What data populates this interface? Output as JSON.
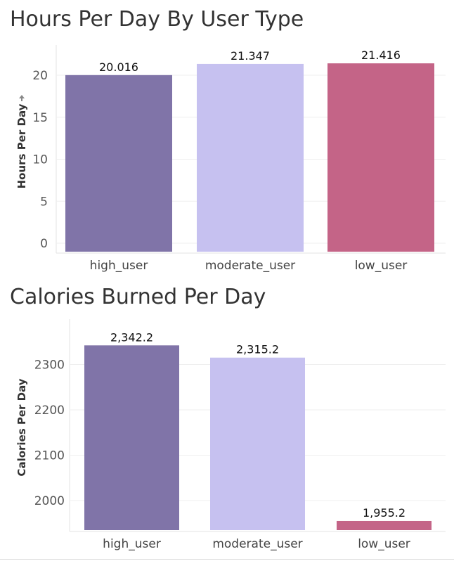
{
  "chart_data": [
    {
      "type": "bar",
      "title": "Hours Per Day By User Type",
      "xlabel": "",
      "ylabel": "Hours Per Day",
      "categories": [
        "high_user",
        "moderate_user",
        "low_user"
      ],
      "values": [
        20.016,
        21.347,
        21.416
      ],
      "value_labels": [
        "20.016",
        "21.347",
        "21.416"
      ],
      "colors": [
        "#8074a8",
        "#c6c1f0",
        "#c46487"
      ],
      "ylim": [
        -1,
        23.6
      ],
      "yticks": [
        0,
        5,
        10,
        15,
        20
      ],
      "grid": true,
      "legend": "none"
    },
    {
      "type": "bar",
      "title": "Calories Burned Per Day",
      "xlabel": "",
      "ylabel": "Calories Per Day",
      "categories": [
        "high_user",
        "moderate_user",
        "low_user"
      ],
      "values": [
        2342.2,
        2315.2,
        1955.2
      ],
      "value_labels": [
        "2,342.2",
        "2,315.2",
        "1,955.2"
      ],
      "colors": [
        "#8074a8",
        "#c6c1f0",
        "#c46487"
      ],
      "ylim": [
        1935,
        2400
      ],
      "yticks": [
        2000,
        2100,
        2200,
        2300
      ],
      "grid": true,
      "legend": "none"
    }
  ]
}
